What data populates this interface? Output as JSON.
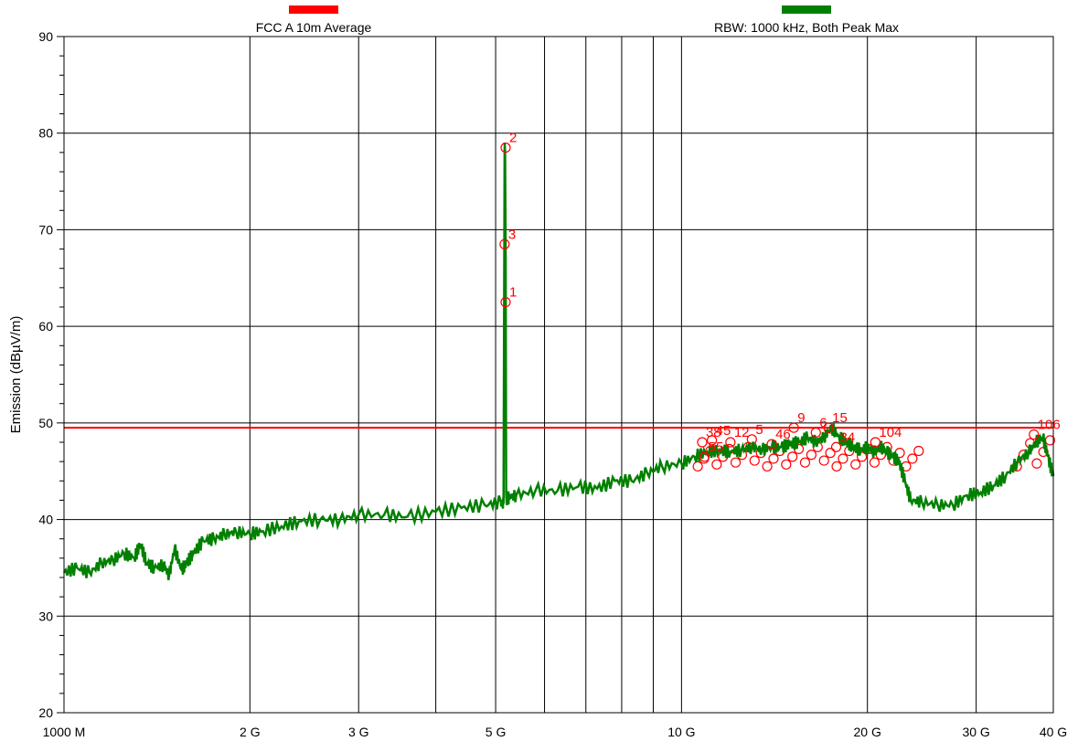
{
  "chart_data": {
    "type": "line",
    "xscale": "log",
    "xlim_hz": [
      1000000000,
      40000000000
    ],
    "ylim": [
      20,
      90
    ],
    "ylabel": "Emission (dBµV/m)",
    "xlabel": "",
    "grid": true,
    "legend_position": "top",
    "x_tick_labels": [
      {
        "hz": 1000000000,
        "label": "1000 M"
      },
      {
        "hz": 2000000000,
        "label": "2 G"
      },
      {
        "hz": 3000000000,
        "label": "3 G"
      },
      {
        "hz": 5000000000,
        "label": "5 G"
      },
      {
        "hz": 10000000000,
        "label": "10 G"
      },
      {
        "hz": 20000000000,
        "label": "20 G"
      },
      {
        "hz": 30000000000,
        "label": "30 G"
      },
      {
        "hz": 40000000000,
        "label": "40 G"
      }
    ],
    "x_gridlines_hz": [
      2000000000,
      3000000000,
      4000000000,
      5000000000,
      6000000000,
      7000000000,
      8000000000,
      9000000000,
      10000000000,
      20000000000,
      30000000000
    ],
    "y_ticks": [
      20,
      30,
      40,
      50,
      60,
      70,
      80,
      90
    ],
    "legend": [
      {
        "label": "FCC A 10m Average",
        "color": "#ff0000"
      },
      {
        "label": "RBW: 1000 kHz, Both Peak Max",
        "color": "#008000"
      }
    ],
    "series": [
      {
        "name": "FCC A 10m Average",
        "color": "#ff0000",
        "x_hz": [
          1000000000,
          40000000000
        ],
        "y": [
          49.5,
          49.5
        ]
      },
      {
        "name": "RBW: 1000 kHz, Both Peak Max",
        "color": "#008000",
        "x_hz": [
          1000000000,
          1050000000,
          1100000000,
          1150000000,
          1200000000,
          1250000000,
          1300000000,
          1330000000,
          1360000000,
          1400000000,
          1450000000,
          1480000000,
          1510000000,
          1550000000,
          1580000000,
          1620000000,
          1680000000,
          1750000000,
          1820000000,
          1900000000,
          2000000000,
          2100000000,
          2250000000,
          2400000000,
          2600000000,
          2800000000,
          3000000000,
          3300000000,
          3600000000,
          4000000000,
          4400000000,
          4800000000,
          5100000000,
          5150000000,
          5170000000,
          5180000000,
          5190000000,
          5200000000,
          5220000000,
          5250000000,
          5400000000,
          5800000000,
          6300000000,
          6800000000,
          7300000000,
          7800000000,
          8300000000,
          8800000000,
          9300000000,
          10000000000,
          10500000000,
          11000000000,
          11500000000,
          12000000000,
          12500000000,
          13000000000,
          13500000000,
          14000000000,
          14500000000,
          15000000000,
          15500000000,
          16000000000,
          16500000000,
          17000000000,
          17500000000,
          18000000000,
          18500000000,
          19000000000,
          19500000000,
          20000000000,
          20500000000,
          21000000000,
          21500000000,
          22000000000,
          22500000000,
          23000000000,
          23500000000,
          24500000000,
          26000000000,
          27500000000,
          29000000000,
          30500000000,
          32000000000,
          33500000000,
          35000000000,
          36500000000,
          37500000000,
          38500000000,
          39200000000,
          40000000000
        ],
        "y": [
          34.5,
          35.0,
          34.5,
          35.5,
          35.8,
          36.5,
          36.0,
          37.5,
          35.5,
          35.0,
          35.3,
          34.2,
          37.0,
          34.8,
          35.5,
          36.5,
          37.8,
          38.0,
          38.5,
          38.7,
          38.5,
          38.8,
          39.3,
          39.8,
          40.0,
          40.0,
          40.5,
          40.5,
          40.3,
          40.8,
          41.2,
          41.5,
          41.8,
          41.6,
          78.5,
          78.0,
          68.5,
          42.5,
          42.0,
          42.3,
          42.5,
          43.0,
          43.0,
          43.4,
          43.2,
          44.0,
          44.0,
          44.8,
          45.5,
          45.8,
          46.5,
          47.0,
          47.2,
          47.0,
          47.2,
          47.5,
          47.2,
          47.5,
          47.5,
          47.8,
          48.0,
          48.5,
          48.0,
          48.5,
          49.5,
          48.5,
          48.0,
          47.5,
          47.2,
          47.5,
          47.0,
          47.5,
          47.0,
          46.5,
          46.0,
          44.0,
          42.0,
          41.8,
          41.5,
          41.5,
          42.5,
          42.8,
          43.5,
          44.5,
          46.0,
          47.0,
          48.0,
          48.5,
          46.5,
          44.5
        ]
      }
    ],
    "markers": [
      {
        "label": "1",
        "x_hz": 5190000000,
        "y": 62.5
      },
      {
        "label": "2",
        "x_hz": 5190000000,
        "y": 78.5
      },
      {
        "label": "3",
        "x_hz": 5170000000,
        "y": 68.5
      },
      {
        "label": "38",
        "x_hz": 10800000000,
        "y": 48.0
      },
      {
        "label": "45",
        "x_hz": 11200000000,
        "y": 48.2
      },
      {
        "label": "12",
        "x_hz": 12000000000,
        "y": 48.0
      },
      {
        "label": "55",
        "x_hz": 10900000000,
        "y": 46.5
      },
      {
        "label": "5",
        "x_hz": 13000000000,
        "y": 48.3
      },
      {
        "label": "46",
        "x_hz": 14000000000,
        "y": 47.8
      },
      {
        "label": "9",
        "x_hz": 15200000000,
        "y": 49.5
      },
      {
        "label": "6",
        "x_hz": 16500000000,
        "y": 49.0
      },
      {
        "label": "15",
        "x_hz": 17300000000,
        "y": 49.5
      },
      {
        "label": "34",
        "x_hz": 17800000000,
        "y": 47.5
      },
      {
        "label": "104",
        "x_hz": 20600000000,
        "y": 48.0
      },
      {
        "label": "106",
        "x_hz": 37200000000,
        "y": 48.8
      }
    ],
    "marker_cluster_boxes_hz": [
      {
        "from_hz": 10500000000,
        "to_hz": 24500000000,
        "ymin": 45.5,
        "ymax": 47.5
      },
      {
        "from_hz": 34500000000,
        "to_hz": 40000000000,
        "ymin": 45.5,
        "ymax": 48.5
      }
    ]
  }
}
